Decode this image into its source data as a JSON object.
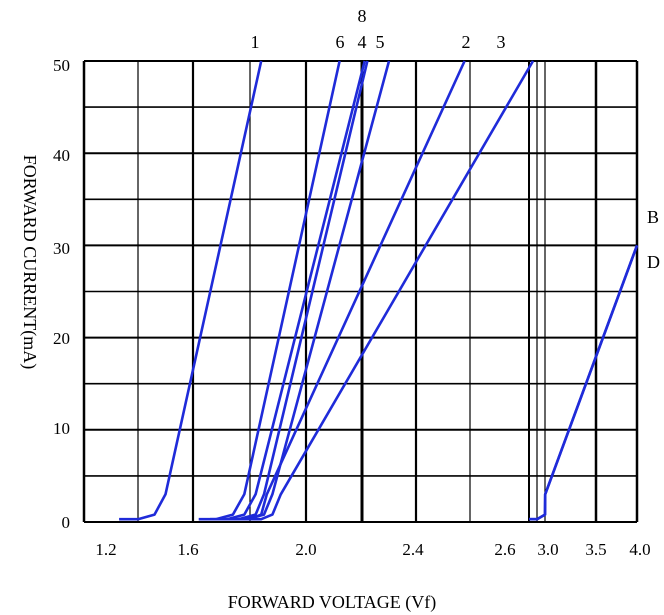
{
  "chart_data": {
    "type": "line",
    "title": "",
    "xlabel": "FORWARD VOLTAGE (Vf)",
    "ylabel": "FORWARD CURRENT(mA)",
    "ylim": [
      0,
      50
    ],
    "yticks": [
      "0",
      "10",
      "20",
      "30",
      "40",
      "50"
    ],
    "xticks": [
      "1.2",
      "1.6",
      "2.0",
      "2.4",
      "2.6",
      "3.0",
      "3.5",
      "4.0"
    ],
    "grid": true,
    "line_color": "#1f2bd9",
    "curve_labels": [
      "1",
      "6",
      "8",
      "4",
      "5",
      "2",
      "3",
      "B",
      "D"
    ],
    "series": [
      {
        "name": "1",
        "x": [
          1.33,
          1.4,
          1.46,
          1.5,
          1.84
        ],
        "y": [
          0.3,
          0.3,
          0.8,
          3.0,
          50
        ]
      },
      {
        "name": "6",
        "x": [
          1.62,
          1.68,
          1.74,
          1.78,
          2.12
        ],
        "y": [
          0.3,
          0.3,
          0.8,
          3.0,
          50
        ]
      },
      {
        "name": "8",
        "x": [
          1.66,
          1.72,
          1.78,
          1.82,
          2.21
        ],
        "y": [
          0.3,
          0.3,
          0.8,
          3.0,
          50
        ]
      },
      {
        "name": "4",
        "x": [
          1.7,
          1.76,
          1.82,
          1.85,
          2.22
        ],
        "y": [
          0.3,
          0.3,
          0.8,
          3.0,
          50
        ]
      },
      {
        "name": "5",
        "x": [
          1.73,
          1.79,
          1.85,
          1.88,
          2.3
        ],
        "y": [
          0.3,
          0.3,
          0.8,
          3.0,
          50
        ]
      },
      {
        "name": "2",
        "x": [
          1.76,
          1.8,
          1.84,
          1.86,
          2.58
        ],
        "y": [
          0.3,
          0.3,
          0.8,
          3.0,
          50
        ]
      },
      {
        "name": "3",
        "x": [
          1.8,
          1.84,
          1.88,
          1.91,
          2.68
        ],
        "y": [
          0.3,
          0.3,
          0.8,
          3.0,
          50
        ]
      },
      {
        "name": "B",
        "x": [
          2.64,
          2.72,
          2.8,
          2.84,
          4.0
        ],
        "y": [
          0.3,
          0.3,
          0.8,
          3.0,
          30
        ]
      },
      {
        "name": "D",
        "x": [
          2.64,
          2.72,
          2.8,
          2.84,
          4.0
        ],
        "y": [
          0.3,
          0.3,
          0.8,
          3.0,
          30
        ]
      }
    ]
  }
}
